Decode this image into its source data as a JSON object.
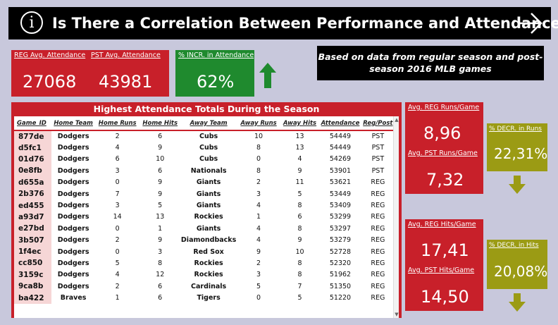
{
  "header": {
    "title": "Is There a Correlation Between Performance and Attendance?",
    "info_icon_glyph": "i",
    "info_icon": "info-icon",
    "next_icon": "arrow-right-icon"
  },
  "kpis": {
    "reg_attendance": {
      "label": "REG Avg. Attendance",
      "value": "27068"
    },
    "pst_attendance": {
      "label": "PST Avg. Attendance",
      "value": "43981"
    },
    "incr_attendance": {
      "label": "% INCR. in Attendance",
      "value": "62%"
    },
    "reg_runs": {
      "label": "Avg. REG Runs/Game",
      "value": "8,96"
    },
    "pst_runs": {
      "label": "Avg. PST Runs/Game",
      "value": "7,32"
    },
    "decr_runs": {
      "label": "% DECR. in Runs",
      "value": "22,31%"
    },
    "reg_hits": {
      "label": "Avg. REG Hits/Game",
      "value": "17,41"
    },
    "pst_hits": {
      "label": "Avg. PST Hits/Game",
      "value": "14,50"
    },
    "decr_hits": {
      "label": "% DECR. in Hits",
      "value": "20,08%"
    }
  },
  "note": {
    "line1": "Based on data from regular season and post-",
    "line2": "season 2016 MLB games"
  },
  "table": {
    "title": "Highest Attendance Totals During the Season",
    "columns": [
      "Game_ID",
      "Home Team",
      "Home Runs",
      "Home Hits",
      "Away Team",
      "Away Runs",
      "Away Hits",
      "Attendance",
      "Reg/Post"
    ],
    "rows": [
      [
        "877de",
        "Dodgers",
        "2",
        "6",
        "Cubs",
        "10",
        "13",
        "54449",
        "PST"
      ],
      [
        "d5fc1",
        "Dodgers",
        "4",
        "9",
        "Cubs",
        "8",
        "13",
        "54449",
        "PST"
      ],
      [
        "01d76",
        "Dodgers",
        "6",
        "10",
        "Cubs",
        "0",
        "4",
        "54269",
        "PST"
      ],
      [
        "0e8fb",
        "Dodgers",
        "3",
        "6",
        "Nationals",
        "8",
        "9",
        "53901",
        "PST"
      ],
      [
        "d655a",
        "Dodgers",
        "0",
        "9",
        "Giants",
        "2",
        "11",
        "53621",
        "REG"
      ],
      [
        "2b376",
        "Dodgers",
        "7",
        "9",
        "Giants",
        "3",
        "5",
        "53449",
        "REG"
      ],
      [
        "ed455",
        "Dodgers",
        "3",
        "5",
        "Giants",
        "4",
        "8",
        "53409",
        "REG"
      ],
      [
        "a93d7",
        "Dodgers",
        "14",
        "13",
        "Rockies",
        "1",
        "6",
        "53299",
        "REG"
      ],
      [
        "e27bd",
        "Dodgers",
        "0",
        "1",
        "Giants",
        "4",
        "8",
        "53297",
        "REG"
      ],
      [
        "3b507",
        "Dodgers",
        "2",
        "9",
        "Diamondbacks",
        "4",
        "9",
        "53279",
        "REG"
      ],
      [
        "1f4ec",
        "Dodgers",
        "0",
        "3",
        "Red Sox",
        "9",
        "10",
        "52728",
        "REG"
      ],
      [
        "cc850",
        "Dodgers",
        "5",
        "8",
        "Rockies",
        "2",
        "8",
        "52320",
        "REG"
      ],
      [
        "3159c",
        "Dodgers",
        "4",
        "12",
        "Rockies",
        "3",
        "8",
        "51962",
        "REG"
      ],
      [
        "9ca8b",
        "Dodgers",
        "2",
        "6",
        "Cardinals",
        "5",
        "7",
        "51350",
        "REG"
      ],
      [
        "ba422",
        "Braves",
        "1",
        "6",
        "Tigers",
        "0",
        "5",
        "51220",
        "REG"
      ]
    ]
  },
  "colors": {
    "red": "#c8202a",
    "green": "#1f8a2e",
    "olive": "#9b9b14",
    "background": "#c8c8dc"
  },
  "icons": {
    "up_arrow": "arrow-up-icon",
    "down_arrow": "arrow-down-icon",
    "scroll_up": "chevron-up-icon",
    "scroll_down": "chevron-down-icon"
  }
}
